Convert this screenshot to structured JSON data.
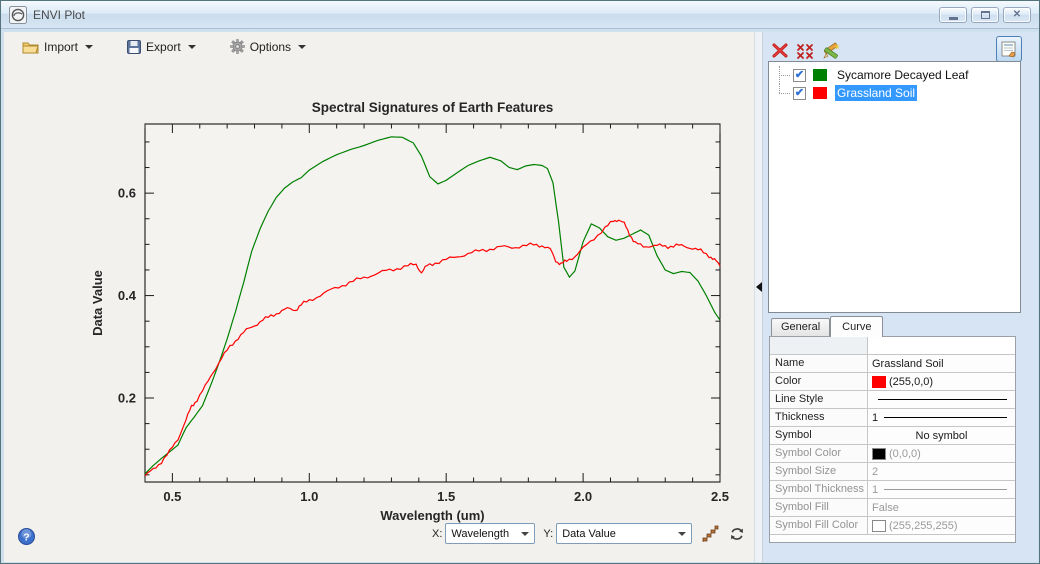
{
  "window": {
    "title": "ENVI Plot"
  },
  "toolbar": {
    "import_label": "Import",
    "export_label": "Export",
    "options_label": "Options"
  },
  "bottom_bar": {
    "x_label": "X:",
    "x_value": "Wavelength",
    "y_label": "Y:",
    "y_value": "Data Value"
  },
  "right_panel": {
    "selection_color": "#3399ff",
    "legend_items": [
      {
        "label": "Sycamore Decayed Leaf",
        "color": "#008000",
        "checked": true,
        "selected": false
      },
      {
        "label": "Grassland Soil",
        "color": "#ff0000",
        "checked": true,
        "selected": true
      }
    ],
    "tabs": [
      {
        "label": "General",
        "active": false
      },
      {
        "label": "Curve",
        "active": true
      }
    ],
    "properties": [
      {
        "label": "Name",
        "value": "Grassland Soil",
        "type": "text",
        "enabled": true
      },
      {
        "label": "Color",
        "value": "(255,0,0)",
        "swatch": "#ff0000",
        "type": "swatch",
        "enabled": true
      },
      {
        "label": "Line Style",
        "value": "",
        "type": "line",
        "enabled": true
      },
      {
        "label": "Thickness",
        "value": "1",
        "type": "numline",
        "enabled": true
      },
      {
        "label": "Symbol",
        "value": "No symbol",
        "type": "center",
        "enabled": true
      },
      {
        "label": "Symbol Color",
        "value": "(0,0,0)",
        "swatch": "#000000",
        "type": "swatch",
        "enabled": false
      },
      {
        "label": "Symbol Size",
        "value": "2",
        "type": "text",
        "enabled": false
      },
      {
        "label": "Symbol Thickness",
        "value": "1",
        "type": "numline",
        "enabled": false
      },
      {
        "label": "Symbol Fill",
        "value": "False",
        "type": "text",
        "enabled": false
      },
      {
        "label": "Symbol Fill Color",
        "value": "(255,255,255)",
        "swatch": "#ffffff",
        "type": "swatch",
        "enabled": false
      }
    ]
  },
  "chart_data": {
    "type": "line",
    "title": "Spectral Signatures of Earth Features",
    "xlabel": "Wavelength (um)",
    "ylabel": "Data Value",
    "xlim": [
      0.4,
      2.5
    ],
    "ylim": [
      0.036,
      0.735
    ],
    "x_major_ticks": [
      0.5,
      1.0,
      1.5,
      2.0,
      2.5
    ],
    "x_minor_step": 0.1,
    "y_major_ticks": [
      0.2,
      0.4,
      0.6
    ],
    "y_minor_step": 0.05,
    "grid": false,
    "legend_position": "external-right-panel",
    "series": [
      {
        "name": "Sycamore Decayed Leaf",
        "color": "#008000",
        "noise": 0,
        "x": [
          0.4,
          0.43,
          0.46,
          0.49,
          0.52,
          0.55,
          0.58,
          0.61,
          0.64,
          0.67,
          0.7,
          0.73,
          0.76,
          0.79,
          0.82,
          0.85,
          0.88,
          0.91,
          0.94,
          0.97,
          1.0,
          1.05,
          1.1,
          1.15,
          1.2,
          1.25,
          1.3,
          1.34,
          1.38,
          1.41,
          1.44,
          1.47,
          1.5,
          1.54,
          1.58,
          1.62,
          1.66,
          1.7,
          1.73,
          1.76,
          1.79,
          1.82,
          1.85,
          1.87,
          1.89,
          1.91,
          1.93,
          1.95,
          1.97,
          2.0,
          2.03,
          2.06,
          2.09,
          2.12,
          2.15,
          2.18,
          2.21,
          2.24,
          2.27,
          2.3,
          2.33,
          2.36,
          2.39,
          2.42,
          2.45,
          2.48,
          2.5
        ],
        "y": [
          0.052,
          0.068,
          0.082,
          0.095,
          0.108,
          0.142,
          0.163,
          0.185,
          0.225,
          0.268,
          0.315,
          0.368,
          0.425,
          0.487,
          0.53,
          0.565,
          0.592,
          0.61,
          0.622,
          0.63,
          0.645,
          0.662,
          0.675,
          0.685,
          0.693,
          0.703,
          0.71,
          0.709,
          0.698,
          0.672,
          0.632,
          0.618,
          0.625,
          0.64,
          0.654,
          0.663,
          0.67,
          0.663,
          0.65,
          0.646,
          0.653,
          0.656,
          0.654,
          0.648,
          0.62,
          0.545,
          0.455,
          0.436,
          0.448,
          0.505,
          0.54,
          0.532,
          0.515,
          0.508,
          0.512,
          0.52,
          0.528,
          0.518,
          0.478,
          0.45,
          0.443,
          0.447,
          0.445,
          0.428,
          0.4,
          0.368,
          0.352
        ]
      },
      {
        "name": "Grassland Soil",
        "color": "#ff0000",
        "noise": 0.003,
        "x": [
          0.4,
          0.43,
          0.46,
          0.49,
          0.52,
          0.55,
          0.57,
          0.59,
          0.62,
          0.65,
          0.68,
          0.71,
          0.74,
          0.77,
          0.8,
          0.83,
          0.86,
          0.89,
          0.92,
          0.95,
          0.97,
          1.0,
          1.04,
          1.08,
          1.12,
          1.16,
          1.2,
          1.24,
          1.28,
          1.32,
          1.36,
          1.39,
          1.41,
          1.43,
          1.46,
          1.5,
          1.54,
          1.58,
          1.62,
          1.66,
          1.7,
          1.74,
          1.78,
          1.82,
          1.85,
          1.88,
          1.9,
          1.92,
          1.94,
          1.97,
          2.0,
          2.04,
          2.08,
          2.11,
          2.13,
          2.15,
          2.17,
          2.19,
          2.22,
          2.25,
          2.28,
          2.31,
          2.34,
          2.37,
          2.4,
          2.43,
          2.46,
          2.48,
          2.5
        ],
        "y": [
          0.048,
          0.06,
          0.076,
          0.095,
          0.12,
          0.158,
          0.183,
          0.197,
          0.222,
          0.252,
          0.278,
          0.3,
          0.318,
          0.332,
          0.342,
          0.352,
          0.36,
          0.368,
          0.374,
          0.372,
          0.382,
          0.39,
          0.401,
          0.411,
          0.42,
          0.428,
          0.435,
          0.442,
          0.448,
          0.453,
          0.458,
          0.461,
          0.445,
          0.458,
          0.464,
          0.47,
          0.476,
          0.482,
          0.487,
          0.491,
          0.495,
          0.494,
          0.497,
          0.499,
          0.498,
          0.49,
          0.468,
          0.462,
          0.467,
          0.477,
          0.492,
          0.512,
          0.532,
          0.545,
          0.549,
          0.54,
          0.52,
          0.503,
          0.495,
          0.498,
          0.497,
          0.496,
          0.498,
          0.496,
          0.493,
          0.487,
          0.478,
          0.47,
          0.458
        ]
      }
    ]
  }
}
